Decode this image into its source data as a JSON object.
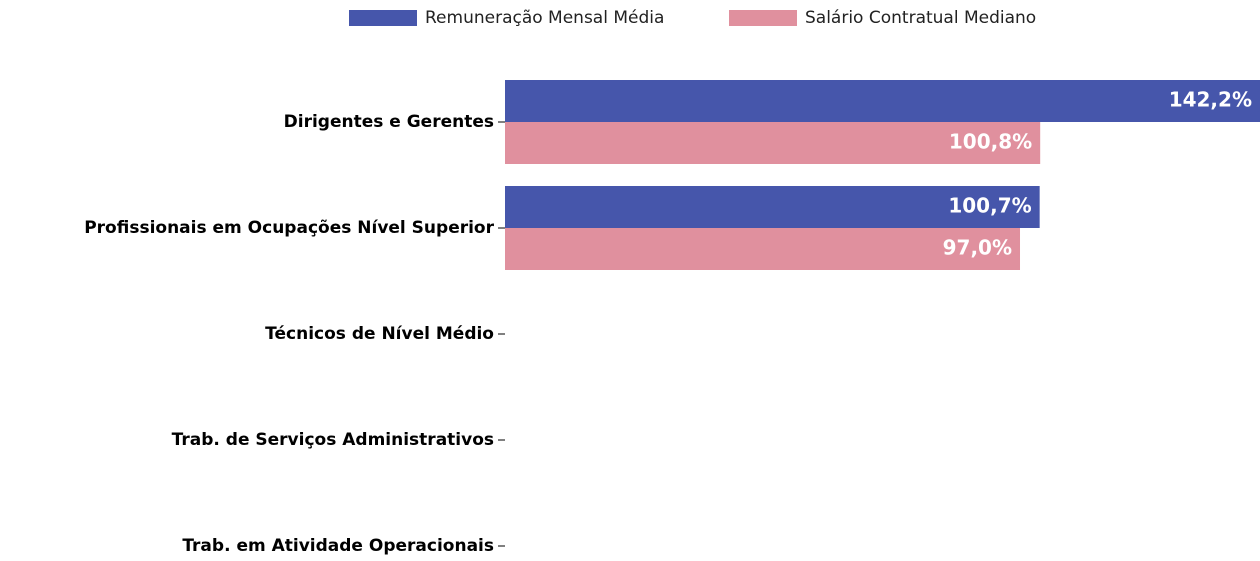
{
  "chart_data": {
    "type": "barh",
    "categories": [
      "Dirigentes e Gerentes",
      "Profissionais em Ocupações Nível Superior",
      "Técnicos de Nível Médio",
      "Trab. de Serviços Administrativos",
      "Trab. em Atividade Operacionais"
    ],
    "series": [
      {
        "name": "Remuneração Mensal Média",
        "color": "#4656ab",
        "values": [
          142.2,
          100.7,
          null,
          null,
          null
        ],
        "value_labels": [
          "142,2%",
          "100,7%",
          null,
          null,
          null
        ]
      },
      {
        "name": "Salário Contratual Mediano",
        "color": "#e0909e",
        "values": [
          100.8,
          97.0,
          null,
          null,
          null
        ],
        "value_labels": [
          "100,8%",
          "97,0%",
          null,
          null,
          null
        ]
      }
    ],
    "xlim": [
      0,
      142.2
    ],
    "legend": "top"
  }
}
